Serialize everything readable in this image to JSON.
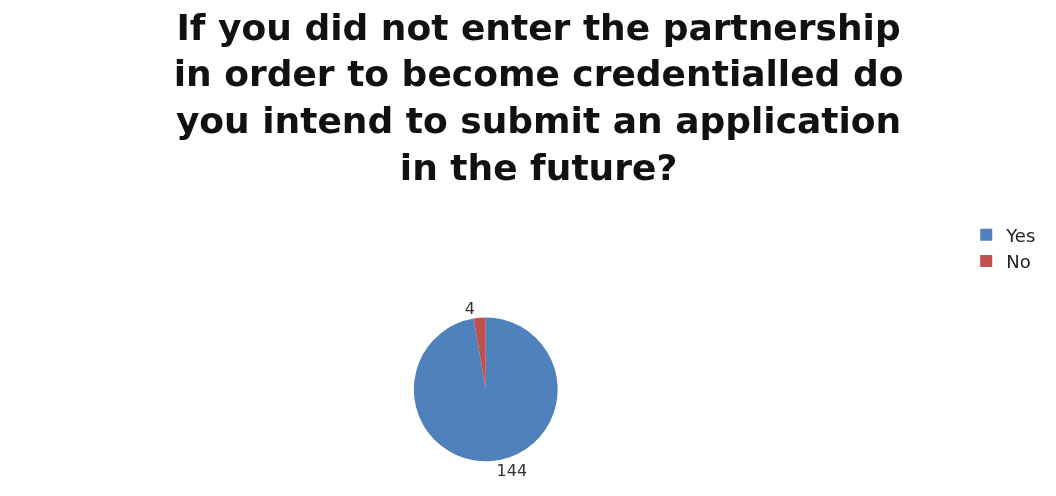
{
  "chart_data": {
    "type": "pie",
    "title": "If you did not enter the partnership in order to become credentialled do you intend to submit an application in the future?",
    "categories": [
      "Yes",
      "No"
    ],
    "values": [
      144,
      4
    ],
    "colors": [
      "#4f81bd",
      "#c0504d"
    ],
    "data_labels": true,
    "legend": "right"
  }
}
